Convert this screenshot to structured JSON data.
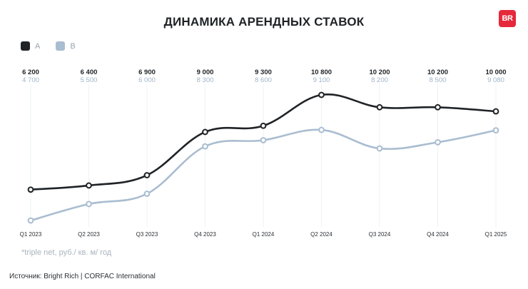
{
  "title": "ДИНАМИКА АРЕНДНЫХ СТАВОК",
  "logo_text": "BR",
  "legend": [
    {
      "label": "A",
      "color": "#1f2326"
    },
    {
      "label": "B",
      "color": "#a9bdd0"
    }
  ],
  "footnote": "*triple net,  руб./ кв. м/ год",
  "source": "Источник: Bright Rich | CORFAC International",
  "chart_data": {
    "type": "line",
    "categories": [
      "Q1 2023",
      "Q2 2023",
      "Q3 2023",
      "Q4 2023",
      "Q1 2024",
      "Q2 2024",
      "Q3 2024",
      "Q4 2024",
      "Q1 2025"
    ],
    "series": [
      {
        "name": "A",
        "color": "#1f2326",
        "values": [
          6200,
          6400,
          6900,
          9000,
          9300,
          10800,
          10200,
          10200,
          10000
        ],
        "labels": [
          "6 200",
          "6 400",
          "6 900",
          "9 000",
          "9 300",
          "10 800",
          "10 200",
          "10 200",
          "10 000"
        ]
      },
      {
        "name": "B",
        "color": "#a9bdd0",
        "values": [
          4700,
          5500,
          6000,
          8300,
          8600,
          9100,
          8200,
          8500,
          9080
        ],
        "labels": [
          "4 700",
          "5 500",
          "6 000",
          "8 300",
          "8 600",
          "9 100",
          "8 200",
          "8 500",
          "9 080"
        ]
      }
    ],
    "title": "ДИНАМИКА АРЕНДНЫХ СТАВОК",
    "xlabel": "",
    "ylabel": "",
    "ylim": [
      4500,
      11000
    ],
    "grid": "vertical",
    "legend_position": "top-left"
  }
}
